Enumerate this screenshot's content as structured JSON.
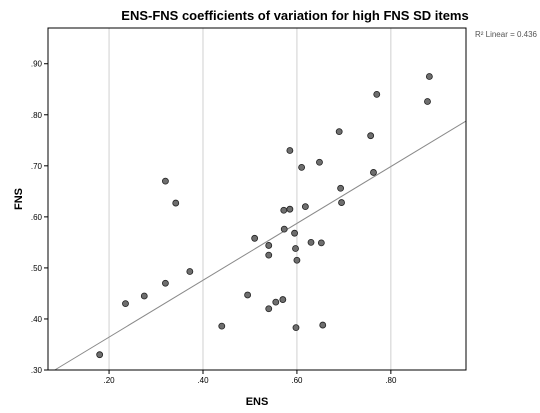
{
  "chart_data": {
    "type": "scatter",
    "title": "ENS-FNS coefficients of variation for high FNS SD items",
    "xlabel": "ENS",
    "ylabel": "FNS",
    "xlim": [
      0.07,
      0.96
    ],
    "ylim": [
      0.3,
      0.97
    ],
    "xticks": [
      0.2,
      0.4,
      0.6,
      0.8
    ],
    "xtick_labels": [
      ".20",
      ".40",
      ".60",
      ".80"
    ],
    "yticks": [
      0.3,
      0.4,
      0.5,
      0.6,
      0.7,
      0.8,
      0.9
    ],
    "ytick_labels": [
      ".30",
      ".40",
      ".50",
      ".60",
      ".70",
      ".80",
      ".90"
    ],
    "grid": "vertical",
    "fit_line": {
      "label": "R² Linear = 0.436",
      "intercept": 0.253,
      "slope": 0.557
    },
    "points": [
      {
        "x": 0.18,
        "y": 0.33
      },
      {
        "x": 0.235,
        "y": 0.43
      },
      {
        "x": 0.275,
        "y": 0.445
      },
      {
        "x": 0.32,
        "y": 0.47
      },
      {
        "x": 0.32,
        "y": 0.67
      },
      {
        "x": 0.342,
        "y": 0.627
      },
      {
        "x": 0.372,
        "y": 0.493
      },
      {
        "x": 0.44,
        "y": 0.386
      },
      {
        "x": 0.495,
        "y": 0.447
      },
      {
        "x": 0.51,
        "y": 0.558
      },
      {
        "x": 0.54,
        "y": 0.42
      },
      {
        "x": 0.54,
        "y": 0.525
      },
      {
        "x": 0.54,
        "y": 0.544
      },
      {
        "x": 0.555,
        "y": 0.433
      },
      {
        "x": 0.57,
        "y": 0.438
      },
      {
        "x": 0.572,
        "y": 0.613
      },
      {
        "x": 0.573,
        "y": 0.576
      },
      {
        "x": 0.585,
        "y": 0.615
      },
      {
        "x": 0.585,
        "y": 0.73
      },
      {
        "x": 0.595,
        "y": 0.568
      },
      {
        "x": 0.597,
        "y": 0.538
      },
      {
        "x": 0.598,
        "y": 0.383
      },
      {
        "x": 0.6,
        "y": 0.515
      },
      {
        "x": 0.61,
        "y": 0.697
      },
      {
        "x": 0.618,
        "y": 0.62
      },
      {
        "x": 0.63,
        "y": 0.55
      },
      {
        "x": 0.648,
        "y": 0.707
      },
      {
        "x": 0.652,
        "y": 0.549
      },
      {
        "x": 0.655,
        "y": 0.388
      },
      {
        "x": 0.69,
        "y": 0.767
      },
      {
        "x": 0.693,
        "y": 0.656
      },
      {
        "x": 0.695,
        "y": 0.628
      },
      {
        "x": 0.757,
        "y": 0.759
      },
      {
        "x": 0.763,
        "y": 0.687
      },
      {
        "x": 0.77,
        "y": 0.84
      },
      {
        "x": 0.878,
        "y": 0.826
      },
      {
        "x": 0.882,
        "y": 0.875
      }
    ]
  }
}
